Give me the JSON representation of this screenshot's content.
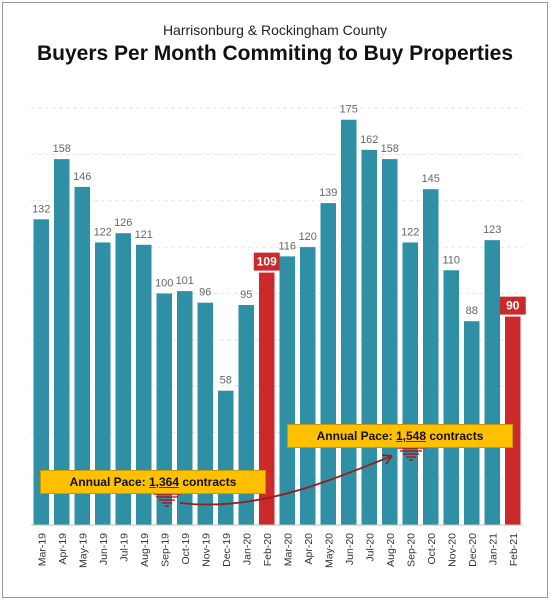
{
  "chart_data": {
    "type": "bar",
    "title": "Buyers Per Month Commiting to Buy Properties",
    "subtitle": "Harrisonburg & Rockingham County",
    "categories": [
      "Mar-19",
      "Apr-19",
      "May-19",
      "Jun-19",
      "Jul-19",
      "Aug-19",
      "Sep-19",
      "Oct-19",
      "Nov-19",
      "Dec-19",
      "Jan-20",
      "Feb-20",
      "Mar-20",
      "Apr-20",
      "May-20",
      "Jun-20",
      "Jul-20",
      "Aug-20",
      "Sep-20",
      "Oct-20",
      "Nov-20",
      "Dec-20",
      "Jan-21",
      "Feb-21"
    ],
    "values": [
      132,
      158,
      146,
      122,
      126,
      121,
      100,
      101,
      96,
      58,
      95,
      109,
      116,
      120,
      139,
      175,
      162,
      158,
      122,
      145,
      110,
      88,
      123,
      90
    ],
    "highlighted": [
      "Feb-20",
      "Feb-21"
    ],
    "ylim": [
      0,
      190
    ],
    "grid": true,
    "colors": {
      "bar": "#2e8fa5",
      "highlight": "#cc2a2a",
      "callout": "#ffc000",
      "arrow": "#9b1c1c"
    },
    "annotations": [
      {
        "prefix": "Annual Pace: ",
        "number": "1,364",
        "suffix": " contracts"
      },
      {
        "prefix": "Annual Pace: ",
        "number": "1,548",
        "suffix": " contracts"
      }
    ]
  }
}
